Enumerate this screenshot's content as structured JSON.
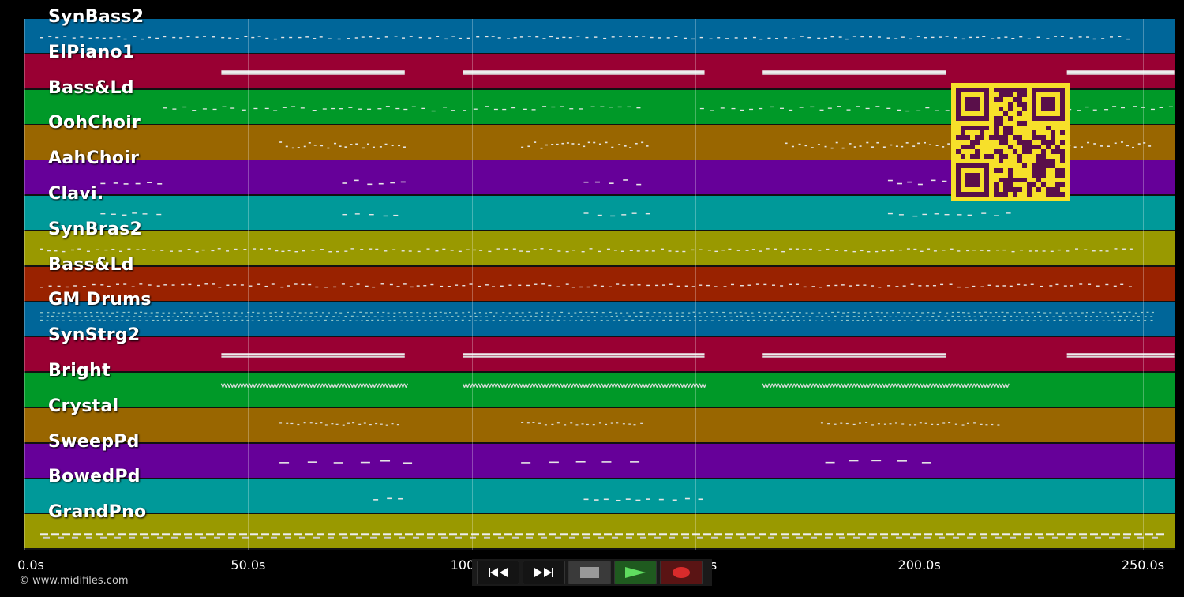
{
  "tracks": [
    {
      "name": "SynBass2",
      "color": "#006699",
      "pattern": "dots"
    },
    {
      "name": "ElPiano1",
      "color": "#990033",
      "pattern": "bars"
    },
    {
      "name": "Bass&Ld",
      "color": "#009928",
      "pattern": "squiggle"
    },
    {
      "name": "OohChoir",
      "color": "#996600",
      "pattern": "clusters"
    },
    {
      "name": "AahChoir",
      "color": "#660099",
      "pattern": "phrases"
    },
    {
      "name": "Clavi.",
      "color": "#009999",
      "pattern": "phrases2"
    },
    {
      "name": "SynBras2",
      "color": "#999900",
      "pattern": "dots"
    },
    {
      "name": "Bass&Ld",
      "color": "#992200",
      "pattern": "dots"
    },
    {
      "name": "GM Drums",
      "color": "#006699",
      "pattern": "drums"
    },
    {
      "name": "SynStrg2",
      "color": "#990033",
      "pattern": "bars"
    },
    {
      "name": "Bright",
      "color": "#009928",
      "pattern": "zigzag"
    },
    {
      "name": "Crystal",
      "color": "#996600",
      "pattern": "sparse"
    },
    {
      "name": "SweepPd",
      "color": "#660099",
      "pattern": "lines"
    },
    {
      "name": "BowedPd",
      "color": "#009999",
      "pattern": "short"
    },
    {
      "name": "GrandPno",
      "color": "#999900",
      "pattern": "piano"
    }
  ],
  "axis": {
    "ticks": [
      "0.0s",
      "50.0s",
      "100.0s",
      "150.0s",
      "200.0s",
      "250.0s"
    ],
    "tick_seconds": [
      0,
      50,
      100,
      150,
      200,
      250
    ],
    "max_seconds": 257
  },
  "transport": {
    "rewind": "rewind-icon",
    "forward": "fast-forward-icon",
    "stop": "stop-icon",
    "play": "play-icon",
    "record": "record-icon"
  },
  "footer": {
    "copyright": "© www.midifiles.com"
  },
  "qr_label": "qr-code"
}
